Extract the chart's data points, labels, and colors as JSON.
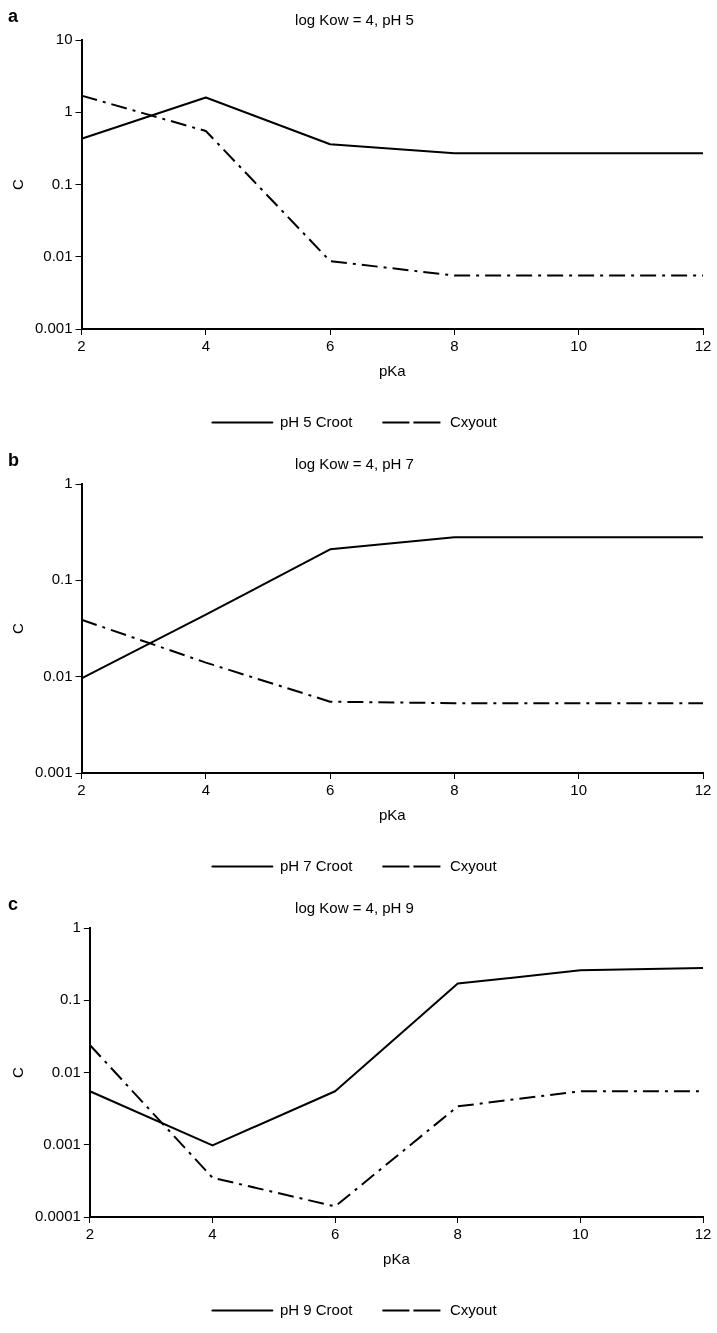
{
  "chart_data": [
    {
      "type": "line",
      "title": "log Kow = 4, pH 5",
      "xlabel": "pKa",
      "ylabel": "C",
      "annotations": [
        "a"
      ],
      "x": [
        2,
        4,
        6,
        8,
        10,
        12
      ],
      "log": "y",
      "xlim": [
        2,
        12
      ],
      "xticks": [
        2,
        4,
        6,
        8,
        10,
        12
      ],
      "ylim": [
        0.001,
        10
      ],
      "yticks": [
        0.001,
        0.01,
        0.1,
        1,
        10
      ],
      "grid": false,
      "legend": "bottom",
      "marker": "none",
      "series": [
        {
          "name": "pH 5 Croot",
          "color": "#000000",
          "line_style": "solid",
          "values": [
            0.43,
            1.6,
            0.36,
            0.27,
            0.27,
            0.27
          ]
        },
        {
          "name": "Cxyout",
          "color": "#000000",
          "line_style": "dashed",
          "values": [
            1.7,
            0.55,
            0.0087,
            0.0055,
            0.0055,
            0.0055
          ]
        }
      ]
    },
    {
      "type": "line",
      "title": "log Kow = 4, pH 7",
      "xlabel": "pKa",
      "ylabel": "C",
      "annotations": [
        "b"
      ],
      "x": [
        2,
        4,
        6,
        8,
        10,
        12
      ],
      "log": "y",
      "xlim": [
        2,
        12
      ],
      "xticks": [
        2,
        4,
        6,
        8,
        10,
        12
      ],
      "ylim": [
        0.001,
        1
      ],
      "yticks": [
        0.001,
        0.01,
        0.1,
        1
      ],
      "grid": false,
      "legend": "bottom",
      "marker": "none",
      "series": [
        {
          "name": "pH 7 Croot",
          "color": "#000000",
          "line_style": "solid",
          "values": [
            0.0096,
            0.044,
            0.21,
            0.28,
            0.28,
            0.28
          ]
        },
        {
          "name": "Cxyout",
          "color": "#000000",
          "line_style": "dashed",
          "values": [
            0.039,
            0.014,
            0.0055,
            0.0053,
            0.0053,
            0.0053
          ]
        }
      ]
    },
    {
      "type": "line",
      "title": "log Kow = 4, pH 9",
      "xlabel": "pKa",
      "ylabel": "C",
      "annotations": [
        "c"
      ],
      "x": [
        2,
        4,
        6,
        8,
        10,
        12
      ],
      "log": "y",
      "xlim": [
        2,
        12
      ],
      "xticks": [
        2,
        4,
        6,
        8,
        10,
        12
      ],
      "ylim": [
        0.0001,
        1
      ],
      "yticks": [
        0.0001,
        0.001,
        0.01,
        0.1,
        1
      ],
      "grid": false,
      "legend": "bottom",
      "marker": "none",
      "series": [
        {
          "name": "pH 9 Croot",
          "color": "#000000",
          "line_style": "solid",
          "values": [
            0.0055,
            0.00098,
            0.0055,
            0.17,
            0.26,
            0.28
          ]
        },
        {
          "name": "Cxyout",
          "color": "#000000",
          "line_style": "dashed",
          "values": [
            0.024,
            0.00035,
            0.00014,
            0.0034,
            0.0055,
            0.0055
          ]
        }
      ]
    }
  ]
}
